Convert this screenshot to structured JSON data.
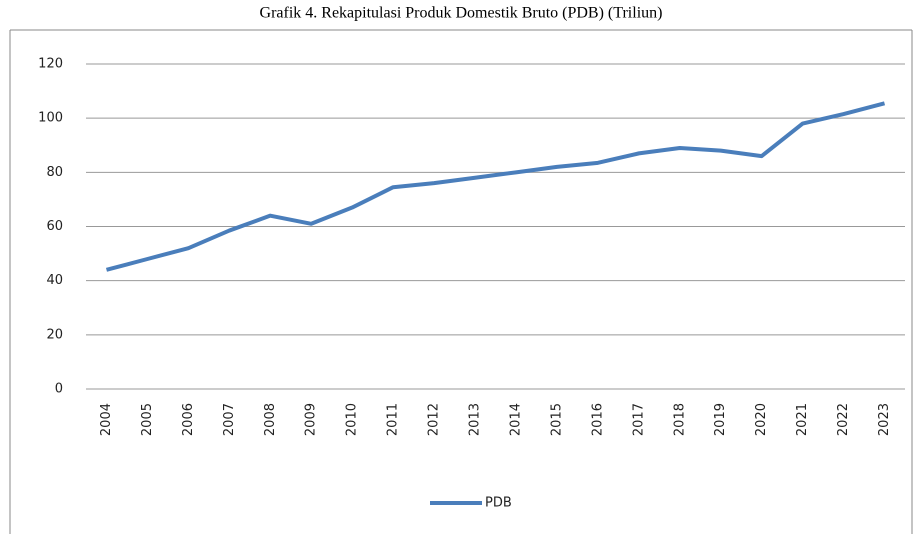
{
  "chart_data": {
    "type": "line",
    "title": "Grafik 4. Rekapitulasi Produk Domestik Bruto (PDB) (Triliun)",
    "categories": [
      "2004",
      "2005",
      "2006",
      "2007",
      "2008",
      "2009",
      "2010",
      "2011",
      "2012",
      "2013",
      "2014",
      "2015",
      "2016",
      "2017",
      "2018",
      "2019",
      "2020",
      "2021",
      "2022",
      "2023"
    ],
    "series": [
      {
        "name": "PDB",
        "color": "#4a7ebb",
        "values": [
          44,
          48,
          52,
          58.5,
          64,
          61,
          67,
          74.5,
          76,
          78,
          80,
          82,
          83.5,
          87,
          89,
          88,
          86,
          98,
          101.5,
          105.5
        ]
      }
    ],
    "ylim": [
      0,
      120
    ],
    "yticks": [
      0,
      20,
      40,
      60,
      80,
      100,
      120
    ],
    "grid": true,
    "legend": "bottom"
  }
}
